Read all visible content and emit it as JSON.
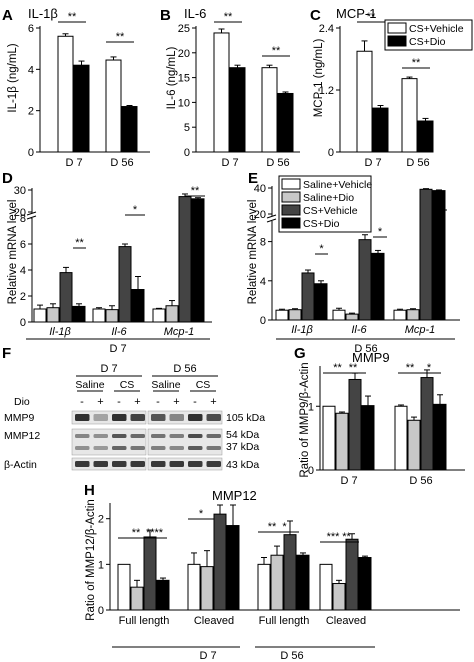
{
  "colors": {
    "white": "#ffffff",
    "light_grey": "#c8c8c8",
    "dark_grey": "#444444",
    "black": "#000000",
    "blot_bg": "#e7e7e7",
    "band": "#262626"
  },
  "panels": {
    "A": {
      "letter": "A",
      "title": "IL-1β",
      "ylabel": "IL-1β (ng/mL)"
    },
    "B": {
      "letter": "B",
      "title": "IL-6",
      "ylabel": "IL-6 (ng/mL)"
    },
    "C": {
      "letter": "C",
      "title": "MCP-1",
      "ylabel": "MCP-1 (ng/mL)"
    },
    "D": {
      "letter": "D",
      "ylabel": "Relative mRNA level",
      "group_label": "D 7"
    },
    "E": {
      "letter": "E",
      "ylabel": "Relative mRNA level",
      "group_label": "D 56"
    },
    "F": {
      "letter": "F"
    },
    "G": {
      "letter": "G",
      "title": "MMP9",
      "ylabel": "Ratio of MMP9/β-Actin"
    },
    "H": {
      "letter": "H",
      "title": "MMP12",
      "ylabel": "Ratio of MMP12/β-Actin",
      "group_labels": [
        "D 7",
        "D 56"
      ]
    }
  },
  "legends": {
    "abc": [
      "CS+Vehicle",
      "CS+Dio"
    ],
    "four": [
      "Saline+Vehicle",
      "Saline+Dio",
      "CS+Vehicle",
      "CS+Dio"
    ]
  },
  "blot": {
    "day_labels": [
      "D 7",
      "D 56"
    ],
    "group_labels": [
      "Saline",
      "CS",
      "Saline",
      "CS"
    ],
    "dio_label": "Dio",
    "dio_marks": [
      "-",
      "+",
      "-",
      "+",
      "-",
      "+",
      "-",
      "+"
    ],
    "rows": [
      {
        "name": "MMP9",
        "kda": [
          "105 kDa"
        ],
        "intensity": [
          0.95,
          0.35,
          0.95,
          0.85,
          0.75,
          0.5,
          0.95,
          0.8
        ]
      },
      {
        "name": "MMP12",
        "kda": [
          "54 kDa",
          "37 kDa"
        ],
        "intensity": [
          0.5,
          0.45,
          0.75,
          0.65,
          0.6,
          0.55,
          0.8,
          0.65
        ]
      },
      {
        "name": "β-Actin",
        "kda": [
          "43 kDa"
        ],
        "intensity": [
          0.9,
          0.9,
          0.9,
          0.9,
          0.9,
          0.9,
          0.9,
          0.9
        ]
      }
    ]
  },
  "chart_data": [
    {
      "panel": "A",
      "type": "bar",
      "categories": [
        "D 7",
        "D 56"
      ],
      "series": [
        {
          "name": "CS+Vehicle",
          "values": [
            5.6,
            4.45
          ]
        },
        {
          "name": "CS+Dio",
          "values": [
            4.2,
            2.2
          ]
        }
      ],
      "errors": [
        [
          0.12,
          0.15
        ],
        [
          0.2,
          0.05
        ]
      ],
      "ylim": [
        0,
        6
      ],
      "yticks": [
        "0",
        "2",
        "4",
        "6"
      ],
      "significance": [
        "**",
        "**"
      ]
    },
    {
      "panel": "B",
      "type": "bar",
      "categories": [
        "D 7",
        "D 56"
      ],
      "series": [
        {
          "name": "CS+Vehicle",
          "values": [
            24,
            17
          ]
        },
        {
          "name": "CS+Dio",
          "values": [
            17,
            11.8
          ]
        }
      ],
      "errors": [
        [
          0.8,
          0.5
        ],
        [
          0.5,
          0.3
        ]
      ],
      "ylim": [
        0,
        25
      ],
      "yticks": [
        "0",
        "5",
        "10",
        "15",
        "20",
        "25"
      ],
      "significance": [
        "**",
        "**"
      ]
    },
    {
      "panel": "C",
      "type": "bar",
      "categories": [
        "D 7",
        "D 56"
      ],
      "series": [
        {
          "name": "CS+Vehicle",
          "values": [
            1.95,
            1.42
          ]
        },
        {
          "name": "CS+Dio",
          "values": [
            0.85,
            0.6
          ]
        }
      ],
      "errors": [
        [
          0.2,
          0.03
        ],
        [
          0.05,
          0.05
        ]
      ],
      "ylim": [
        0,
        2.4
      ],
      "yticks": [
        "0",
        "1.2",
        "2.4"
      ],
      "significance": [
        "**",
        "**"
      ]
    },
    {
      "panel": "D",
      "type": "bar",
      "categories": [
        "Il-1β",
        "Il-6",
        "Mcp-1"
      ],
      "series": [
        {
          "name": "Saline+Vehicle",
          "values": [
            1,
            1,
            1
          ]
        },
        {
          "name": "Saline+Dio",
          "values": [
            1.1,
            0.95,
            1.25
          ]
        },
        {
          "name": "CS+Vehicle",
          "values": [
            3.8,
            5.8,
            27
          ]
        },
        {
          "name": "CS+Dio",
          "values": [
            1.2,
            2.5,
            26
          ]
        }
      ],
      "errors": [
        [
          0.3,
          0.1,
          0.05
        ],
        [
          0.3,
          0.3,
          0.4
        ],
        [
          0.4,
          0.2,
          1.2
        ],
        [
          0.2,
          1.0,
          0.5
        ]
      ],
      "ylim": [
        0,
        30
      ],
      "yticks": [
        "0",
        "2",
        "4",
        "6",
        "8",
        "20",
        "30"
      ],
      "axis_break": [
        8,
        20
      ],
      "significance": [
        "**",
        "*",
        "**"
      ]
    },
    {
      "panel": "E",
      "type": "bar",
      "categories": [
        "Il-1β",
        "Il-6",
        "Mcp-1"
      ],
      "series": [
        {
          "name": "Saline+Vehicle",
          "values": [
            1,
            1,
            1
          ]
        },
        {
          "name": "Saline+Dio",
          "values": [
            1.05,
            0.6,
            1.05
          ]
        },
        {
          "name": "CS+Vehicle",
          "values": [
            4.8,
            8.2,
            39
          ]
        },
        {
          "name": "CS+Dio",
          "values": [
            3.7,
            6.8,
            38
          ]
        }
      ],
      "errors": [
        [
          0.1,
          0.2,
          0.1
        ],
        [
          0.1,
          0.1,
          0.1
        ],
        [
          0.3,
          0.5,
          0.5
        ],
        [
          0.3,
          0.3,
          0.5
        ]
      ],
      "ylim": [
        0,
        40
      ],
      "yticks": [
        "0",
        "4",
        "8",
        "20",
        "40"
      ],
      "axis_break": [
        10,
        20
      ],
      "significance": [
        "*",
        "*",
        "**"
      ]
    },
    {
      "panel": "G",
      "type": "bar",
      "categories": [
        "D 7",
        "D 56"
      ],
      "series": [
        {
          "name": "Saline+Vehicle",
          "values": [
            1,
            1
          ]
        },
        {
          "name": "Saline+Dio",
          "values": [
            0.89,
            0.78
          ]
        },
        {
          "name": "CS+Vehicle",
          "values": [
            1.42,
            1.45
          ]
        },
        {
          "name": "CS+Dio",
          "values": [
            1.01,
            1.03
          ]
        }
      ],
      "errors": [
        [
          0,
          0.02
        ],
        [
          0.02,
          0.05
        ],
        [
          0.1,
          0.12
        ],
        [
          0.15,
          0.15
        ]
      ],
      "ylim": [
        0,
        1.6
      ],
      "yticks": [
        "0",
        "1"
      ],
      "significance": [
        "**",
        "**",
        "**",
        "*"
      ]
    },
    {
      "panel": "H",
      "type": "bar",
      "categories": [
        "Full length",
        "Cleaved",
        "Full length",
        "Cleaved"
      ],
      "series": [
        {
          "name": "Saline+Vehicle",
          "values": [
            1,
            1,
            1,
            1
          ]
        },
        {
          "name": "Saline+Dio",
          "values": [
            0.5,
            0.95,
            1.2,
            0.58
          ]
        },
        {
          "name": "CS+Vehicle",
          "values": [
            1.6,
            2.1,
            1.65,
            1.55
          ]
        },
        {
          "name": "CS+Dio",
          "values": [
            0.65,
            1.85,
            1.2,
            1.15
          ]
        }
      ],
      "errors": [
        [
          0,
          0.25,
          0.15,
          0
        ],
        [
          0.15,
          0.35,
          0.2,
          0.07
        ],
        [
          0.15,
          0.4,
          0.3,
          0.12
        ],
        [
          0.05,
          0.5,
          0.05,
          0.03
        ]
      ],
      "ylim": [
        0,
        2.3
      ],
      "yticks": [
        "0",
        "1",
        "2"
      ],
      "significance": [
        "**",
        "****",
        "*",
        "**",
        "*",
        "***",
        "**"
      ]
    }
  ]
}
